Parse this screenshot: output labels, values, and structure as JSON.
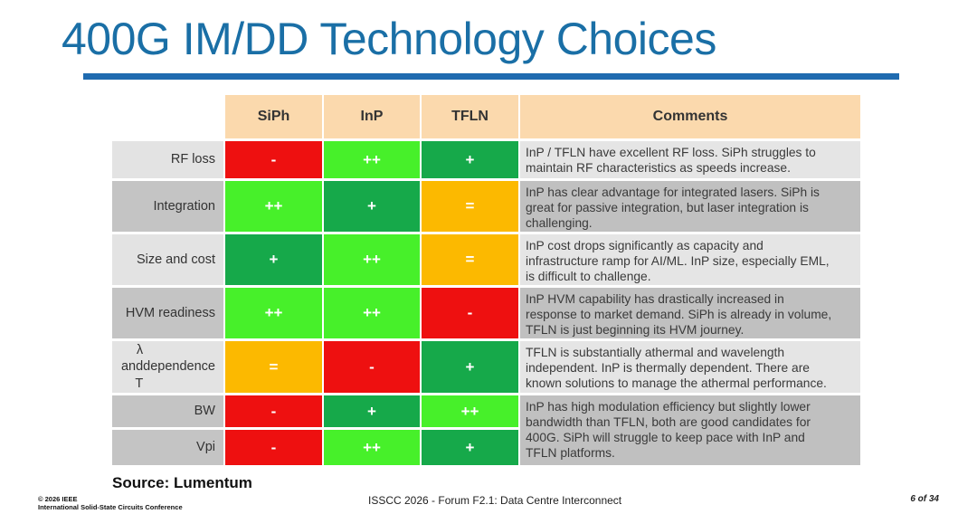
{
  "title": "400G IM/DD Technology Choices",
  "colors": {
    "title": "#1a6fa6",
    "rule": "#1f6bb0",
    "header": "#fbd9ad",
    "negative": "#ee1010",
    "plus": "#16a94a",
    "plus_plus": "#47f02a",
    "equal": "#fcb900"
  },
  "table": {
    "headers": [
      "SiPh",
      "InP",
      "TFLN",
      "Comments"
    ],
    "rows": [
      {
        "label": "RF loss",
        "ratings": [
          "-",
          "++",
          "+"
        ],
        "comment": [
          "InP / TFLN have excellent RF loss. SiPh struggles to",
          "maintain RF characteristics as speeds increase."
        ]
      },
      {
        "label": "Integration",
        "ratings": [
          "++",
          "+",
          "="
        ],
        "comment": [
          "InP has clear advantage for integrated lasers.  SiPh is",
          "great for passive integration, but laser integration is",
          "challenging."
        ]
      },
      {
        "label": "Size and cost",
        "ratings": [
          "+",
          "++",
          "="
        ],
        "comment": [
          "InP cost drops significantly as capacity and",
          "infrastructure ramp for AI/ML.  InP size, especially EML,",
          "is difficult to challenge."
        ]
      },
      {
        "label": "HVM readiness",
        "ratings": [
          "++",
          "++",
          "-"
        ],
        "comment": [
          "InP HVM capability has drastically increased in",
          "response to market demand. SiPh is already in volume,",
          "TFLN is just beginning its HVM journey."
        ]
      },
      {
        "label": [
          "λ and T",
          "dependence"
        ],
        "ratings": [
          "=",
          "-",
          "+"
        ],
        "comment": [
          "TFLN is substantially athermal and wavelength",
          "independent. InP is thermally dependent.  There are",
          "known solutions to manage the athermal performance."
        ]
      },
      {
        "label": "BW",
        "ratings": [
          "-",
          "+",
          "++"
        ]
      },
      {
        "label": "Vpi",
        "ratings": [
          "-",
          "++",
          "+"
        ]
      }
    ],
    "shared_comment": [
      "InP has high modulation efficiency but slightly lower",
      "bandwidth than TFLN, both are good candidates for",
      "400G. SiPh will struggle to keep pace with InP and",
      "TFLN platforms."
    ]
  },
  "source": "Source: Lumentum",
  "footer": {
    "copyright": "© 2026 IEEE",
    "conference": "International Solid-State Circuits Conference",
    "center": "ISSCC 2026 - Forum F2.1: Data Centre Interconnect",
    "page": "6 of 34"
  }
}
